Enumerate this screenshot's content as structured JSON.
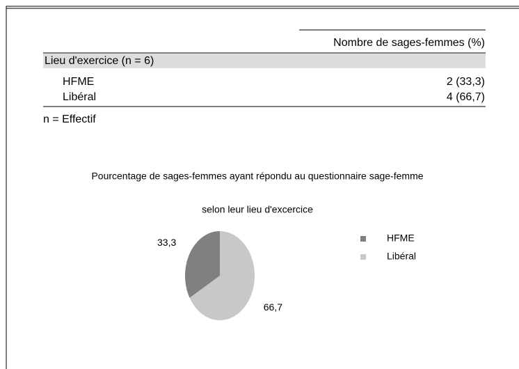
{
  "table": {
    "header": "Nombre de sages-femmes (%)",
    "section": "Lieu d'exercice (n = 6)",
    "rows": [
      [
        "HFME",
        "2 (33,3)"
      ],
      [
        "Libéral",
        "4 (66,7)"
      ]
    ],
    "note": "n = Effectif"
  },
  "chart_data": {
    "type": "pie",
    "title": "Pourcentage de sages-femmes ayant répondu au questionnaire sage-femme",
    "subtitle": "selon leur lieu d'excercice",
    "categories": [
      "HFME",
      "Libéral"
    ],
    "values": [
      33.3,
      66.7
    ],
    "value_labels": [
      "33,3",
      "66,7"
    ],
    "colors": [
      "#808080",
      "#c8c8c8"
    ],
    "legend": "right"
  }
}
